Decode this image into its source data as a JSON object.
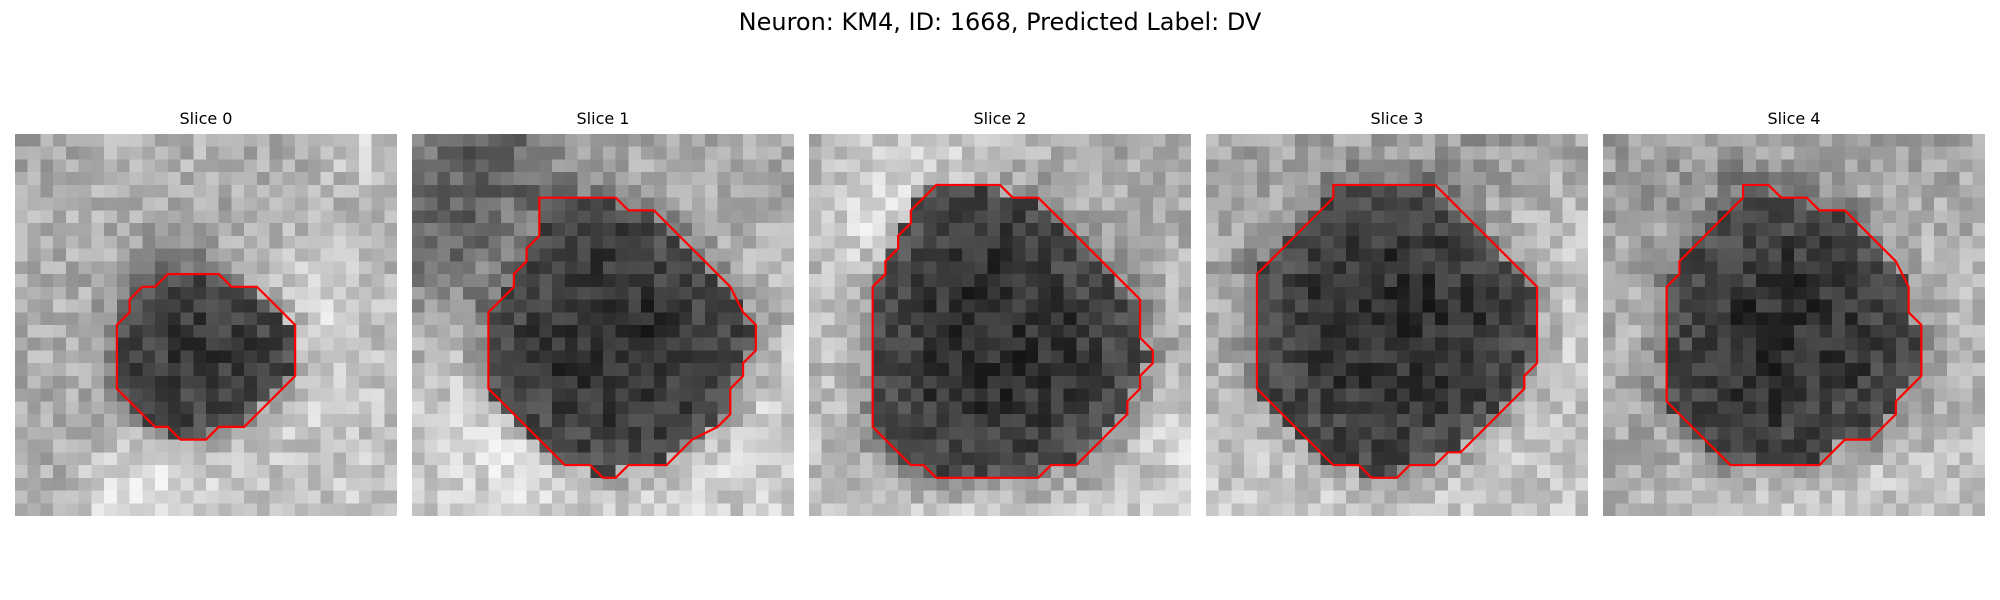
{
  "figure": {
    "title": "Neuron: KM4, ID: 1668, Predicted Label: DV",
    "contour_color": "#ff0000"
  },
  "slices": [
    {
      "title": "Slice 0",
      "contour": [
        [
          16,
          11
        ],
        [
          17,
          12
        ],
        [
          19,
          12
        ],
        [
          20,
          13
        ],
        [
          21,
          14
        ],
        [
          22,
          15
        ],
        [
          22,
          16
        ],
        [
          22,
          17
        ],
        [
          22,
          18
        ],
        [
          22,
          19
        ],
        [
          21,
          20
        ],
        [
          20,
          21
        ],
        [
          19,
          22
        ],
        [
          18,
          23
        ],
        [
          16,
          23
        ],
        [
          15,
          24
        ],
        [
          13,
          24
        ],
        [
          12,
          23
        ],
        [
          11,
          23
        ],
        [
          10,
          22
        ],
        [
          9,
          21
        ],
        [
          8,
          20
        ],
        [
          8,
          19
        ],
        [
          8,
          18
        ],
        [
          8,
          17
        ],
        [
          8,
          16
        ],
        [
          8,
          15
        ],
        [
          9,
          14
        ],
        [
          9,
          13
        ],
        [
          10,
          12
        ],
        [
          11,
          12
        ],
        [
          12,
          11
        ],
        [
          14,
          11
        ],
        [
          16,
          11
        ]
      ]
    },
    {
      "title": "Slice 1",
      "contour": [
        [
          10,
          5
        ],
        [
          16,
          5
        ],
        [
          17,
          6
        ],
        [
          19,
          6
        ],
        [
          20,
          7
        ],
        [
          21,
          8
        ],
        [
          22,
          9
        ],
        [
          23,
          10
        ],
        [
          24,
          11
        ],
        [
          25,
          12
        ],
        [
          26,
          14
        ],
        [
          27,
          15
        ],
        [
          27,
          17
        ],
        [
          26,
          18
        ],
        [
          26,
          19
        ],
        [
          25,
          20
        ],
        [
          25,
          22
        ],
        [
          24,
          23
        ],
        [
          22,
          24
        ],
        [
          21,
          25
        ],
        [
          20,
          26
        ],
        [
          17,
          26
        ],
        [
          16,
          27
        ],
        [
          15,
          27
        ],
        [
          14,
          26
        ],
        [
          12,
          26
        ],
        [
          11,
          25
        ],
        [
          10,
          24
        ],
        [
          9,
          23
        ],
        [
          8,
          22
        ],
        [
          7,
          21
        ],
        [
          6,
          20
        ],
        [
          6,
          19
        ],
        [
          6,
          18
        ],
        [
          6,
          17
        ],
        [
          6,
          16
        ],
        [
          6,
          15
        ],
        [
          6,
          14
        ],
        [
          7,
          13
        ],
        [
          8,
          12
        ],
        [
          8,
          11
        ],
        [
          9,
          10
        ],
        [
          9,
          9
        ],
        [
          10,
          8
        ],
        [
          10,
          7
        ],
        [
          10,
          6
        ],
        [
          10,
          5
        ]
      ]
    },
    {
      "title": "Slice 2",
      "contour": [
        [
          10,
          4
        ],
        [
          15,
          4
        ],
        [
          16,
          5
        ],
        [
          18,
          5
        ],
        [
          19,
          6
        ],
        [
          20,
          7
        ],
        [
          21,
          8
        ],
        [
          22,
          9
        ],
        [
          23,
          10
        ],
        [
          24,
          11
        ],
        [
          25,
          12
        ],
        [
          26,
          13
        ],
        [
          26,
          14
        ],
        [
          26,
          15
        ],
        [
          26,
          16
        ],
        [
          27,
          17
        ],
        [
          27,
          18
        ],
        [
          26,
          19
        ],
        [
          26,
          20
        ],
        [
          25,
          21
        ],
        [
          25,
          22
        ],
        [
          24,
          23
        ],
        [
          23,
          24
        ],
        [
          22,
          25
        ],
        [
          21,
          26
        ],
        [
          19,
          26
        ],
        [
          18,
          27
        ],
        [
          10,
          27
        ],
        [
          9,
          26
        ],
        [
          8,
          26
        ],
        [
          7,
          25
        ],
        [
          6,
          24
        ],
        [
          5,
          23
        ],
        [
          5,
          21
        ],
        [
          5,
          19
        ],
        [
          5,
          17
        ],
        [
          5,
          15
        ],
        [
          5,
          13
        ],
        [
          5,
          12
        ],
        [
          6,
          11
        ],
        [
          6,
          10
        ],
        [
          7,
          9
        ],
        [
          7,
          8
        ],
        [
          8,
          7
        ],
        [
          8,
          6
        ],
        [
          9,
          5
        ],
        [
          10,
          4
        ]
      ]
    },
    {
      "title": "Slice 3",
      "contour": [
        [
          10,
          4
        ],
        [
          18,
          4
        ],
        [
          19,
          5
        ],
        [
          20,
          6
        ],
        [
          21,
          7
        ],
        [
          22,
          8
        ],
        [
          23,
          9
        ],
        [
          24,
          10
        ],
        [
          25,
          11
        ],
        [
          26,
          12
        ],
        [
          26,
          14
        ],
        [
          26,
          16
        ],
        [
          26,
          18
        ],
        [
          25,
          19
        ],
        [
          25,
          20
        ],
        [
          24,
          21
        ],
        [
          23,
          22
        ],
        [
          22,
          23
        ],
        [
          21,
          24
        ],
        [
          20,
          25
        ],
        [
          19,
          25
        ],
        [
          18,
          26
        ],
        [
          16,
          26
        ],
        [
          15,
          27
        ],
        [
          13,
          27
        ],
        [
          12,
          26
        ],
        [
          10,
          26
        ],
        [
          9,
          25
        ],
        [
          8,
          24
        ],
        [
          7,
          23
        ],
        [
          6,
          22
        ],
        [
          5,
          21
        ],
        [
          4,
          20
        ],
        [
          4,
          19
        ],
        [
          4,
          17
        ],
        [
          4,
          15
        ],
        [
          4,
          13
        ],
        [
          4,
          11
        ],
        [
          5,
          10
        ],
        [
          6,
          9
        ],
        [
          7,
          8
        ],
        [
          8,
          7
        ],
        [
          9,
          6
        ],
        [
          10,
          5
        ],
        [
          10,
          4
        ]
      ]
    },
    {
      "title": "Slice 4",
      "contour": [
        [
          11,
          4
        ],
        [
          13,
          4
        ],
        [
          14,
          5
        ],
        [
          16,
          5
        ],
        [
          17,
          6
        ],
        [
          19,
          6
        ],
        [
          20,
          7
        ],
        [
          21,
          8
        ],
        [
          22,
          9
        ],
        [
          23,
          10
        ],
        [
          24,
          12
        ],
        [
          24,
          13
        ],
        [
          24,
          14
        ],
        [
          25,
          15
        ],
        [
          25,
          17
        ],
        [
          25,
          19
        ],
        [
          24,
          20
        ],
        [
          23,
          21
        ],
        [
          23,
          22
        ],
        [
          22,
          23
        ],
        [
          21,
          24
        ],
        [
          19,
          24
        ],
        [
          18,
          25
        ],
        [
          17,
          26
        ],
        [
          10,
          26
        ],
        [
          9,
          25
        ],
        [
          8,
          24
        ],
        [
          7,
          23
        ],
        [
          6,
          22
        ],
        [
          5,
          21
        ],
        [
          5,
          20
        ],
        [
          5,
          18
        ],
        [
          5,
          16
        ],
        [
          5,
          14
        ],
        [
          5,
          12
        ],
        [
          6,
          11
        ],
        [
          6,
          10
        ],
        [
          7,
          9
        ],
        [
          8,
          8
        ],
        [
          9,
          7
        ],
        [
          10,
          6
        ],
        [
          11,
          5
        ],
        [
          11,
          4
        ]
      ]
    }
  ]
}
